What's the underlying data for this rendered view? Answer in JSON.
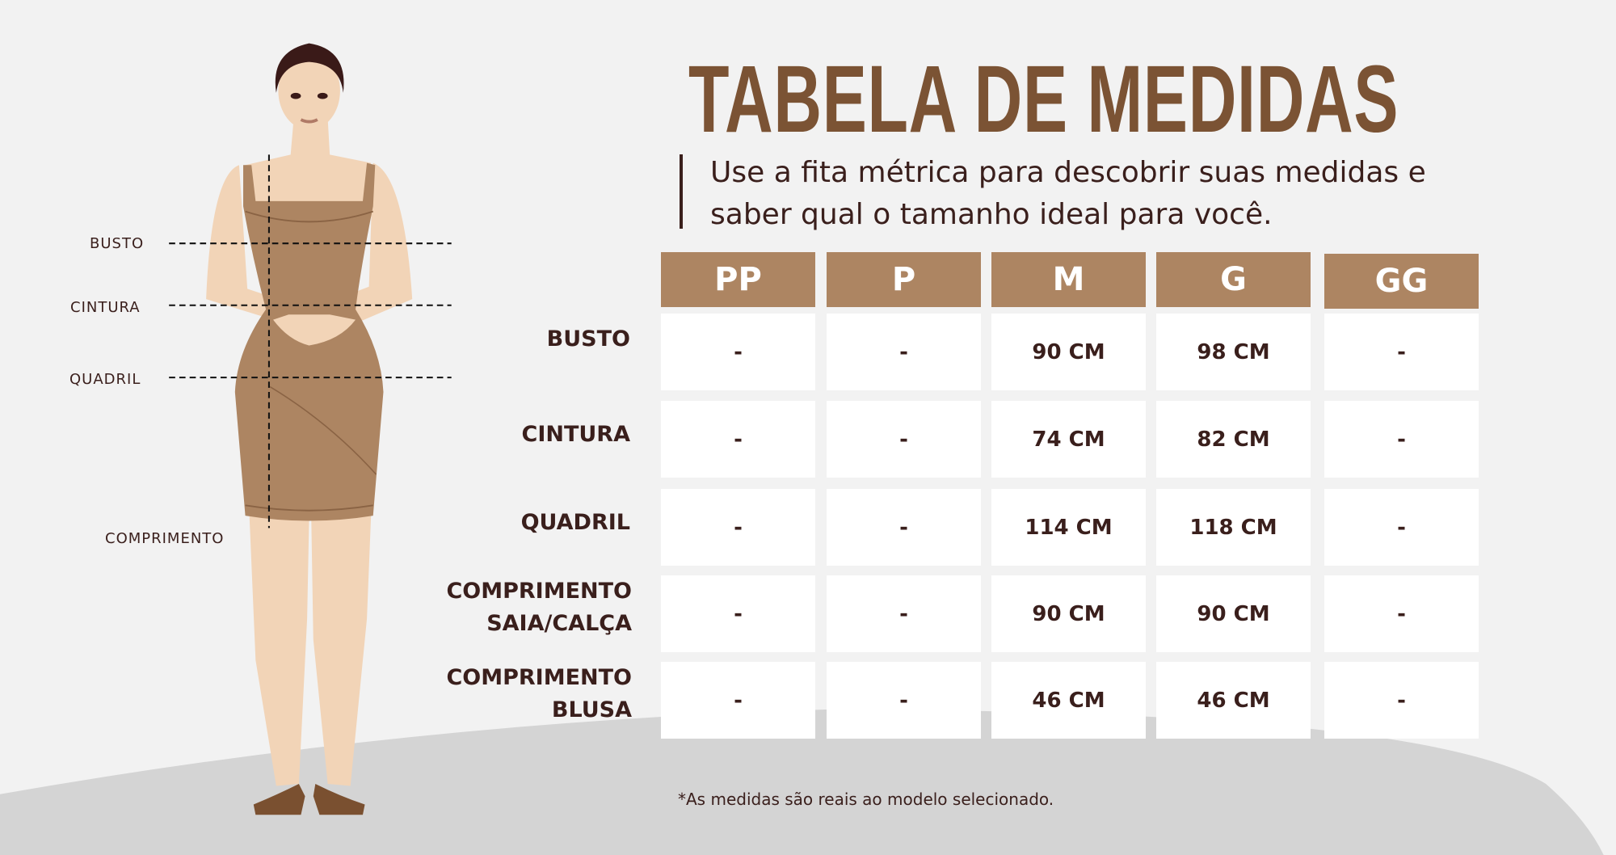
{
  "title": "TABELA DE MEDIDAS",
  "subtitle": {
    "line1": "Use a fita métrica para descobrir suas medidas e",
    "line2": "saber qual o tamanho ideal para você."
  },
  "table": {
    "sizes": [
      "PP",
      "P",
      "M",
      "G",
      "GG"
    ],
    "rows": [
      {
        "label": [
          "BUSTO"
        ],
        "values": [
          "-",
          "-",
          "90 CM",
          "98 CM",
          "-"
        ]
      },
      {
        "label": [
          "CINTURA"
        ],
        "values": [
          "-",
          "-",
          "74 CM",
          "82 CM",
          "-"
        ]
      },
      {
        "label": [
          "QUADRIL"
        ],
        "values": [
          "-",
          "-",
          "114 CM",
          "118 CM",
          "-"
        ]
      },
      {
        "label": [
          "COMPRIMENTO",
          "SAIA/CALÇA"
        ],
        "values": [
          "-",
          "-",
          "90 CM",
          "90 CM",
          "-"
        ]
      },
      {
        "label": [
          "COMPRIMENTO",
          "BLUSA"
        ],
        "values": [
          "-",
          "-",
          "46 CM",
          "46 CM",
          "-"
        ]
      }
    ]
  },
  "figure": {
    "labels": {
      "busto": "BUSTO",
      "cintura": "CINTURA",
      "quadril": "QUADRIL",
      "comprimento": "COMPRIMENTO"
    }
  },
  "footnote": "*As medidas são reais ao modelo selecionado.",
  "colors": {
    "background": "#f2f2f2",
    "title": "#7b5334",
    "header": "#ad8562",
    "text": "#3a1f1c",
    "ground": "#d4d4d4",
    "skin": "#f2d4b7",
    "dress": "#ad8562"
  }
}
